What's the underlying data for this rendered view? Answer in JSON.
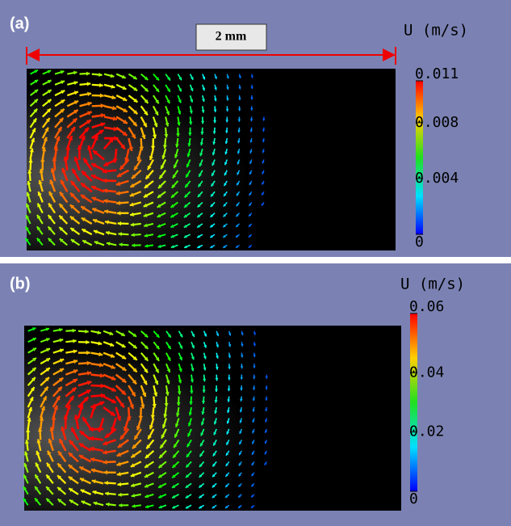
{
  "panels": [
    {
      "label": "(a)",
      "scale_bar": "2 mm",
      "colorbar": {
        "title": "U (m/s)",
        "lim": [
          0,
          0.011
        ],
        "ticks": [
          0.011,
          0.008,
          0.004,
          0
        ]
      }
    },
    {
      "label": "(b)",
      "colorbar": {
        "title": "U (m/s)",
        "lim": [
          0,
          0.06
        ],
        "ticks": [
          0.06,
          0.04,
          0.02,
          0
        ]
      }
    }
  ]
}
